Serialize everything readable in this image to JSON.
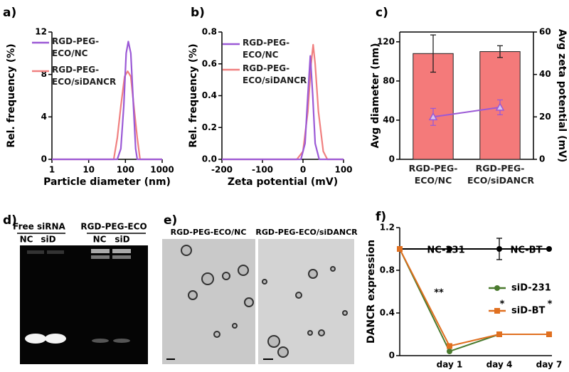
{
  "chart_data": [
    {
      "type": "line",
      "panel_label": "a)",
      "x_label": "Particle diameter (nm)",
      "y_label": "Rel. frequency (%)",
      "xscale": "log",
      "xlim": [
        1,
        1000
      ],
      "xticks": [
        1,
        10,
        100,
        1000
      ],
      "ylim": [
        0,
        12
      ],
      "yticks": [
        0,
        4,
        8,
        12
      ],
      "series": [
        {
          "name": "RGD-PEG-ECO/NC",
          "color": "#9b59d6",
          "x": [
            1,
            60,
            75,
            90,
            105,
            120,
            140,
            160,
            190,
            210,
            1000
          ],
          "values": [
            0,
            0,
            1,
            5,
            10,
            11.1,
            10,
            6,
            1,
            0,
            0
          ]
        },
        {
          "name": "RGD-PEG-ECO/siDANCR",
          "color": "#f08080",
          "x": [
            1,
            48,
            60,
            75,
            95,
            115,
            140,
            170,
            210,
            250,
            1000
          ],
          "values": [
            0,
            0,
            2,
            5,
            7.8,
            8.3,
            7.8,
            5,
            2,
            0,
            0
          ]
        }
      ]
    },
    {
      "type": "line",
      "panel_label": "b)",
      "x_label": "Zeta potential (mV)",
      "y_label": "Rel. frequency (%)",
      "xlim": [
        -200,
        100
      ],
      "xticks": [
        -200,
        -100,
        0,
        100
      ],
      "ylim": [
        0,
        0.8
      ],
      "yticks": [
        {
          "value": 0,
          "label": "0.0"
        },
        0.2,
        0.4,
        0.6,
        0.8
      ],
      "series": [
        {
          "name": "RGD-PEG-ECO/NC",
          "color": "#9b59d6",
          "x": [
            -200,
            -5,
            5,
            12,
            18,
            24,
            30,
            40,
            100
          ],
          "values": [
            0,
            0,
            0.1,
            0.4,
            0.65,
            0.4,
            0.1,
            0,
            0
          ]
        },
        {
          "name": "RGD-PEG-ECO/siDANCR",
          "color": "#f08080",
          "x": [
            -200,
            -15,
            0,
            12,
            20,
            25,
            30,
            38,
            50,
            60,
            100
          ],
          "values": [
            0,
            0,
            0.05,
            0.3,
            0.6,
            0.72,
            0.6,
            0.3,
            0.05,
            0,
            0
          ]
        }
      ]
    },
    {
      "type": "bar",
      "panel_label": "c)",
      "categories": [
        "RGD-PEG-ECO/NC",
        "RGD-PEG-ECO/siDANCR"
      ],
      "y_label": "Avg diameter (nm)",
      "y2_label": "Avg zeta potential (mV)",
      "ylim": [
        0,
        130
      ],
      "yticks": [
        0,
        40,
        80,
        120
      ],
      "y2lim": [
        0,
        60
      ],
      "y2ticks": [
        0,
        20,
        40,
        60
      ],
      "series": [
        {
          "kind": "bar",
          "color": "#f47a7a",
          "values": [
            108,
            110
          ],
          "errors": [
            19,
            6
          ]
        },
        {
          "kind": "line",
          "axis": "y2",
          "color": "#9b59d6",
          "marker": "triangle",
          "values": [
            20,
            24.5
          ],
          "errors": [
            4,
            3.5
          ]
        }
      ]
    },
    {
      "type": "line",
      "panel_label": "f)",
      "categories": [
        null,
        "day 1",
        "day 4",
        "day 7"
      ],
      "y_label": "DANCR expression",
      "ylim": [
        0,
        1.2
      ],
      "yticks": [
        0,
        0.4,
        0.8,
        1.2
      ],
      "series": [
        {
          "color": "#000000",
          "marker": "circle",
          "values": [
            1,
            1,
            1,
            1
          ],
          "errors": [
            null,
            null,
            0.1,
            null
          ]
        },
        {
          "name": "siD-231",
          "color": "#4a7a2e",
          "marker": "circle",
          "values": [
            1,
            0.04,
            0.2,
            0.2
          ]
        },
        {
          "name": "siD-BT",
          "color": "#e07020",
          "marker": "square",
          "values": [
            1,
            0.09,
            0.2,
            0.2
          ],
          "errors": [
            null,
            null,
            null,
            0.02
          ]
        }
      ],
      "annotations": [
        "NC-231",
        "NC-BT",
        "**",
        "*",
        "*"
      ]
    }
  ],
  "gel": {
    "panel_label": "d)",
    "groups": [
      "Free siRNA",
      "RGD-PEG-ECO"
    ],
    "lanes": [
      "NC",
      "siD",
      "NC",
      "siD"
    ]
  },
  "tem": {
    "panel_label": "e)",
    "images": [
      "RGD-PEG-ECO/NC",
      "RGD-PEG-ECO/siDANCR"
    ]
  }
}
